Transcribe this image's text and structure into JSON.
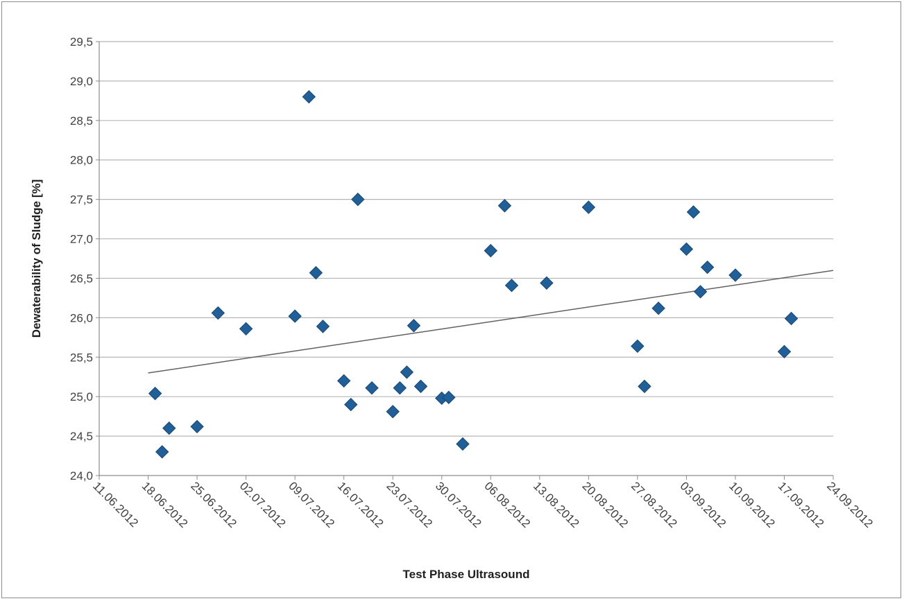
{
  "chart_data": {
    "type": "scatter",
    "xlabel": "Test Phase Ultrasound",
    "ylabel": "Dewaterability of Sludge [%]",
    "xlim": [
      "11.06.2012",
      "24.09.2012"
    ],
    "ylim": [
      24.0,
      29.5
    ],
    "grid": "horizontal",
    "legend": "none",
    "x_tick_labels": [
      "11.06.2012",
      "18.06.2012",
      "25.06.2012",
      "02.07.2012",
      "09.07.2012",
      "16.07.2012",
      "23.07.2012",
      "30.07.2012",
      "06.08.2012",
      "13.08.2012",
      "20.08.2012",
      "27.08.2012",
      "03.09.2012",
      "10.09.2012",
      "17.09.2012",
      "24.09.2012"
    ],
    "y_tick_labels": [
      "24,0",
      "24,5",
      "25,0",
      "25,5",
      "26,0",
      "26,5",
      "27,0",
      "27,5",
      "28,0",
      "28,5",
      "29,0",
      "29,5"
    ],
    "marker_color": "#1f5f9a",
    "trendline": {
      "type": "linear",
      "start": {
        "x": "18.06.2012",
        "y": 25.3
      },
      "end": {
        "x": "24.09.2012",
        "y": 26.6
      },
      "color": "#606060"
    },
    "points": [
      {
        "x": "19.06.2012",
        "y": 25.04
      },
      {
        "x": "20.06.2012",
        "y": 24.3
      },
      {
        "x": "21.06.2012",
        "y": 24.6
      },
      {
        "x": "25.06.2012",
        "y": 24.62
      },
      {
        "x": "28.06.2012",
        "y": 26.06
      },
      {
        "x": "02.07.2012",
        "y": 25.86
      },
      {
        "x": "09.07.2012",
        "y": 26.02
      },
      {
        "x": "11.07.2012",
        "y": 28.8
      },
      {
        "x": "12.07.2012",
        "y": 26.57
      },
      {
        "x": "13.07.2012",
        "y": 25.89
      },
      {
        "x": "16.07.2012",
        "y": 25.2
      },
      {
        "x": "17.07.2012",
        "y": 24.9
      },
      {
        "x": "18.07.2012",
        "y": 27.5
      },
      {
        "x": "20.07.2012",
        "y": 25.11
      },
      {
        "x": "23.07.2012",
        "y": 24.81
      },
      {
        "x": "24.07.2012",
        "y": 25.11
      },
      {
        "x": "25.07.2012",
        "y": 25.31
      },
      {
        "x": "26.07.2012",
        "y": 25.9
      },
      {
        "x": "27.07.2012",
        "y": 25.13
      },
      {
        "x": "30.07.2012",
        "y": 24.98
      },
      {
        "x": "31.07.2012",
        "y": 24.99
      },
      {
        "x": "02.08.2012",
        "y": 24.4
      },
      {
        "x": "06.08.2012",
        "y": 26.85
      },
      {
        "x": "08.08.2012",
        "y": 27.42
      },
      {
        "x": "09.08.2012",
        "y": 26.41
      },
      {
        "x": "14.08.2012",
        "y": 26.44
      },
      {
        "x": "20.08.2012",
        "y": 27.4
      },
      {
        "x": "27.08.2012",
        "y": 25.64
      },
      {
        "x": "28.08.2012",
        "y": 25.13
      },
      {
        "x": "30.08.2012",
        "y": 26.12
      },
      {
        "x": "03.09.2012",
        "y": 26.87
      },
      {
        "x": "04.09.2012",
        "y": 27.34
      },
      {
        "x": "05.09.2012",
        "y": 26.33
      },
      {
        "x": "06.09.2012",
        "y": 26.64
      },
      {
        "x": "10.09.2012",
        "y": 26.54
      },
      {
        "x": "17.09.2012",
        "y": 25.57
      },
      {
        "x": "18.09.2012",
        "y": 25.99
      }
    ]
  }
}
